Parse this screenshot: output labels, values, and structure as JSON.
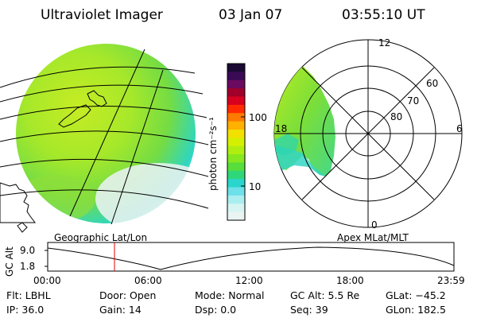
{
  "header": {
    "instrument": "Ultraviolet Imager",
    "date": "03 Jan 07",
    "time": "03:55:10 UT"
  },
  "colorbar": {
    "unit_label": "photon cm⁻²s⁻¹",
    "ticks": [
      "100",
      "10"
    ],
    "colors": [
      "#1a0a33",
      "#3a0a55",
      "#6a0a60",
      "#a0002a",
      "#d8001f",
      "#ff2a00",
      "#ff7a00",
      "#ffb000",
      "#f2e000",
      "#d4f000",
      "#b0ee10",
      "#86e81e",
      "#58de3a",
      "#2ed87a",
      "#2ad6cc",
      "#6ee0ea",
      "#aaeef0",
      "#d6f4f2",
      "#eaf4f2"
    ]
  },
  "polar": {
    "mlt_labels": [
      "12",
      "18",
      "6",
      "0"
    ],
    "mlat_labels": [
      "60",
      "70",
      "80"
    ]
  },
  "altitude_plot": {
    "left_label": "Geographic Lat/Lon",
    "right_label": "Apex MLat/MLT",
    "axis_label": "GC Alt",
    "y_ticks": [
      "9.0",
      "1.8"
    ],
    "x_ticks": [
      "00:00",
      "06:00",
      "12:00",
      "18:00",
      "23:59"
    ],
    "marker_color": "#e00000"
  },
  "info": {
    "filter": "Flt: LBHL",
    "door": "Door: Open",
    "mode": "Mode: Normal",
    "gc_alt": "GC Alt: 5.5 Re",
    "glat": "GLat: −45.2",
    "ip": "IP: 36.0",
    "gain": "Gain: 14",
    "dsp": "Dsp:      0.0",
    "seq": "Seq: 39",
    "glon": "GLon: 182.5"
  }
}
